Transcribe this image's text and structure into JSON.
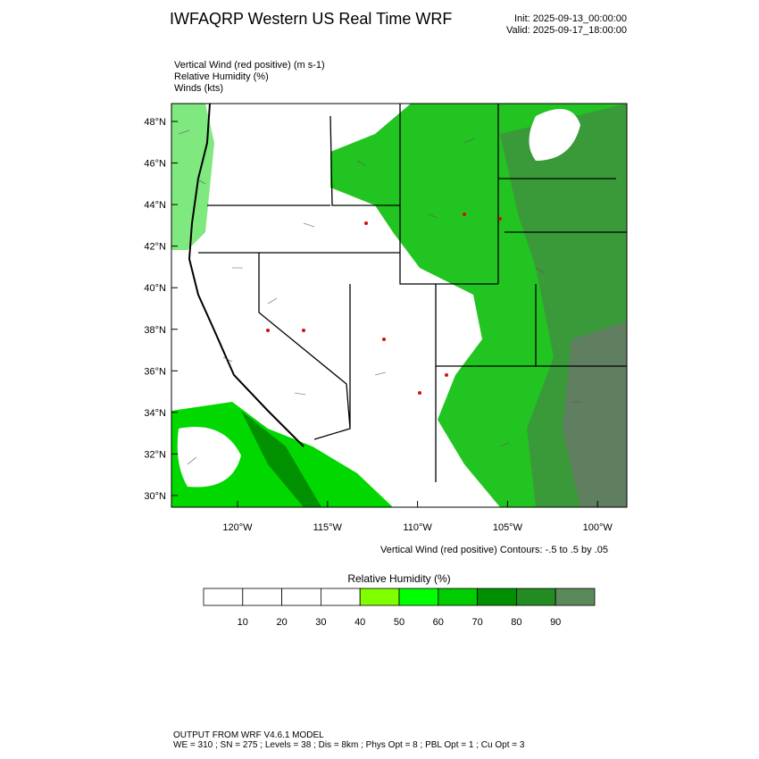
{
  "header": {
    "title": "IWFAQRP Western US Real Time WRF",
    "init": "Init: 2025-09-13_00:00:00",
    "valid": "Valid: 2025-09-17_18:00:00"
  },
  "fields": [
    "Vertical Wind (red positive)   (m s-1)",
    "Relative Humidity   (%)",
    "Winds   (kts)"
  ],
  "map": {
    "lat_labels": [
      "48°N",
      "46°N",
      "44°N",
      "42°N",
      "40°N",
      "38°N",
      "36°N",
      "34°N",
      "32°N",
      "30°N"
    ],
    "lon_labels": [
      "120°W",
      "115°W",
      "110°W",
      "105°W",
      "100°W"
    ],
    "contour_caption": "Vertical Wind (red positive) Contours: -.5 to .5 by .05"
  },
  "colorbar": {
    "title": "Relative Humidity   (%)",
    "labels": [
      "10",
      "20",
      "30",
      "40",
      "50",
      "60",
      "70",
      "80",
      "90"
    ],
    "colors": [
      "#ffffff",
      "#ffffff",
      "#ffffff",
      "#ffffff",
      "#80ff00",
      "#00ff00",
      "#00cc00",
      "#008f00",
      "#228b22",
      "#5a8a5a"
    ]
  },
  "footer": {
    "line1": "OUTPUT FROM WRF V4.6.1 MODEL",
    "line2": "WE = 310 ; SN = 275 ; Levels = 38 ; Dis = 8km ; Phys Opt = 8 ; PBL Opt = 1 ; Cu Opt = 3"
  }
}
